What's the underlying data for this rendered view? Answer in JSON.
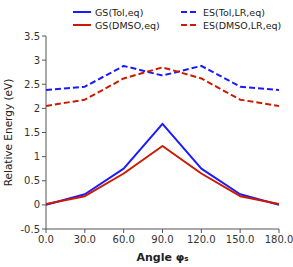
{
  "chart_data": {
    "type": "line",
    "x_label": "Angle φₛ",
    "y_label": "Relative Energy (eV)",
    "x": [
      0.0,
      30.0,
      60.0,
      90.0,
      120.0,
      150.0,
      180.0
    ],
    "series": [
      {
        "name": "GS(Tol,eq)",
        "color": "#1a1aff",
        "line_style": "solid",
        "values": [
          0.0,
          0.22,
          0.75,
          1.68,
          0.75,
          0.22,
          0.0
        ]
      },
      {
        "name": "ES(Tol,LR,eq)",
        "color": "#1a1aff",
        "line_style": "dashed",
        "values": [
          2.38,
          2.45,
          2.88,
          2.68,
          2.88,
          2.45,
          2.38
        ]
      },
      {
        "name": "GS(DMSO,eq)",
        "color": "#cc1a00",
        "line_style": "solid",
        "values": [
          0.02,
          0.18,
          0.65,
          1.22,
          0.65,
          0.18,
          0.02
        ]
      },
      {
        "name": "ES(DMSO,LR,eq)",
        "color": "#cc1a00",
        "line_style": "dashed",
        "values": [
          2.05,
          2.18,
          2.62,
          2.85,
          2.62,
          2.18,
          2.05
        ]
      }
    ],
    "xlim": [
      0.0,
      180.0
    ],
    "ylim": [
      -0.5,
      3.5
    ],
    "xticks": [
      {
        "value": 0.0,
        "label": "0.0"
      },
      {
        "value": 30.0,
        "label": "30.0"
      },
      {
        "value": 60.0,
        "label": "60.0"
      },
      {
        "value": 90.0,
        "label": "90.0"
      },
      {
        "value": 120.0,
        "label": "120.0"
      },
      {
        "value": 150.0,
        "label": "150.0"
      },
      {
        "value": 180.0,
        "label": "180.0"
      }
    ],
    "yticks": [
      -0.5,
      0,
      0.5,
      1,
      1.5,
      2,
      2.5,
      3,
      3.5
    ],
    "grid": false,
    "legend": "upper right"
  }
}
